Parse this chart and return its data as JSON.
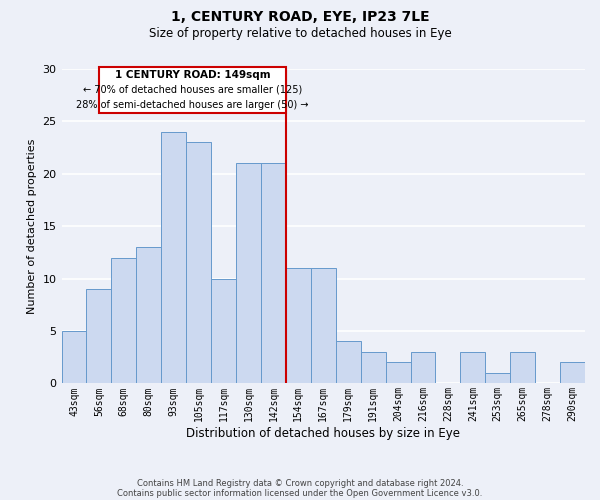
{
  "title": "1, CENTURY ROAD, EYE, IP23 7LE",
  "subtitle": "Size of property relative to detached houses in Eye",
  "xlabel": "Distribution of detached houses by size in Eye",
  "ylabel": "Number of detached properties",
  "footnote1": "Contains HM Land Registry data © Crown copyright and database right 2024.",
  "footnote2": "Contains public sector information licensed under the Open Government Licence v3.0.",
  "bar_labels": [
    "43sqm",
    "56sqm",
    "68sqm",
    "80sqm",
    "93sqm",
    "105sqm",
    "117sqm",
    "130sqm",
    "142sqm",
    "154sqm",
    "167sqm",
    "179sqm",
    "191sqm",
    "204sqm",
    "216sqm",
    "228sqm",
    "241sqm",
    "253sqm",
    "265sqm",
    "278sqm",
    "290sqm"
  ],
  "bar_values": [
    5,
    9,
    12,
    13,
    24,
    23,
    10,
    21,
    21,
    11,
    11,
    4,
    3,
    2,
    3,
    0,
    3,
    1,
    3,
    0,
    2
  ],
  "bar_color": "#ccd9f0",
  "bar_edge_color": "#6699cc",
  "ylim": [
    0,
    30
  ],
  "yticks": [
    0,
    5,
    10,
    15,
    20,
    25,
    30
  ],
  "property_label": "1 CENTURY ROAD: 149sqm",
  "annotation_line1": "← 70% of detached houses are smaller (125)",
  "annotation_line2": "28% of semi-detached houses are larger (50) →",
  "box_color": "#cc0000",
  "background_color": "#edf0f8",
  "grid_color": "#ffffff"
}
